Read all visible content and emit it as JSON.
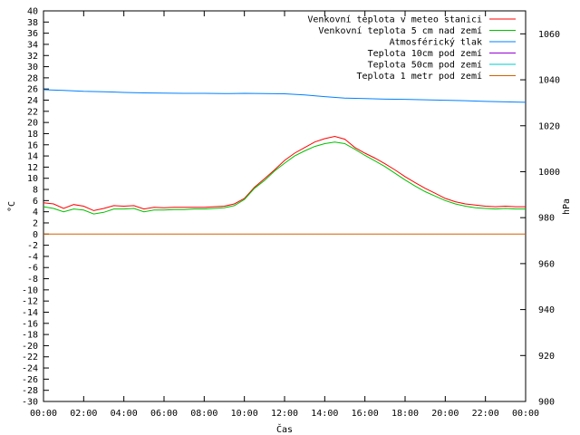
{
  "chart_data": {
    "type": "line",
    "xlabel": "Čas",
    "ylabel": "°C",
    "y2label": "hPa",
    "xlim": [
      0,
      24
    ],
    "ylim": [
      -30,
      40
    ],
    "y2lim": [
      900,
      1070
    ],
    "x_ticks": [
      "00:00",
      "02:00",
      "04:00",
      "06:00",
      "08:00",
      "10:00",
      "12:00",
      "14:00",
      "16:00",
      "18:00",
      "20:00",
      "22:00",
      "00:00"
    ],
    "y_ticks": [
      -30,
      -28,
      -26,
      -24,
      -22,
      -20,
      -18,
      -16,
      -14,
      -12,
      -10,
      -8,
      -6,
      -4,
      -2,
      0,
      2,
      4,
      6,
      8,
      10,
      12,
      14,
      16,
      18,
      20,
      22,
      24,
      26,
      28,
      30,
      32,
      34,
      36,
      38,
      40
    ],
    "y2_ticks": [
      900,
      920,
      940,
      960,
      980,
      1000,
      1020,
      1040,
      1060
    ],
    "legend_position": "top-right",
    "series": [
      {
        "name": "Venkovní teplota v meteo stanici",
        "color": "#ff0000",
        "axis": "y",
        "x": [
          0,
          0.5,
          1,
          1.5,
          2,
          2.5,
          3,
          3.5,
          4,
          4.5,
          5,
          5.5,
          6,
          6.5,
          7,
          7.5,
          8,
          8.5,
          9,
          9.5,
          10,
          10.5,
          11,
          11.5,
          12,
          12.5,
          13,
          13.5,
          14,
          14.5,
          15,
          15.5,
          16,
          16.5,
          17,
          17.5,
          18,
          18.5,
          19,
          19.5,
          20,
          20.5,
          21,
          21.5,
          22,
          22.5,
          23,
          23.5,
          24
        ],
        "values": [
          5.6,
          5.4,
          4.6,
          5.3,
          5.0,
          4.2,
          4.6,
          5.1,
          5.0,
          5.1,
          4.5,
          4.8,
          4.7,
          4.8,
          4.8,
          4.8,
          4.8,
          4.9,
          5.0,
          5.4,
          6.4,
          8.4,
          9.9,
          11.5,
          13.2,
          14.5,
          15.5,
          16.5,
          17.1,
          17.5,
          17.0,
          15.5,
          14.5,
          13.6,
          12.6,
          11.5,
          10.3,
          9.2,
          8.2,
          7.3,
          6.4,
          5.8,
          5.4,
          5.2,
          5.0,
          4.9,
          5.0,
          4.9,
          4.9
        ]
      },
      {
        "name": "Venkovní teplota 5 cm nad zemí",
        "color": "#00c000",
        "axis": "y",
        "x": [
          0,
          0.5,
          1,
          1.5,
          2,
          2.5,
          3,
          3.5,
          4,
          4.5,
          5,
          5.5,
          6,
          6.5,
          7,
          7.5,
          8,
          8.5,
          9,
          9.5,
          10,
          10.5,
          11,
          11.5,
          12,
          12.5,
          13,
          13.5,
          14,
          14.5,
          15,
          15.5,
          16,
          16.5,
          17,
          17.5,
          18,
          18.5,
          19,
          19.5,
          20,
          20.5,
          21,
          21.5,
          22,
          22.5,
          23,
          23.5,
          24
        ],
        "values": [
          4.9,
          4.6,
          4.0,
          4.5,
          4.3,
          3.6,
          3.9,
          4.5,
          4.5,
          4.6,
          4.0,
          4.3,
          4.3,
          4.4,
          4.4,
          4.5,
          4.5,
          4.6,
          4.7,
          5.1,
          6.2,
          8.2,
          9.6,
          11.3,
          12.7,
          14.0,
          14.9,
          15.7,
          16.2,
          16.5,
          16.2,
          15.2,
          14.1,
          13.1,
          12.1,
          10.9,
          9.7,
          8.6,
          7.6,
          6.8,
          6.0,
          5.4,
          5.0,
          4.7,
          4.6,
          4.5,
          4.6,
          4.5,
          4.5
        ]
      },
      {
        "name": "Atmosférický tlak",
        "color": "#0080ff",
        "axis": "y2",
        "x": [
          0,
          1,
          2,
          3,
          4,
          5,
          6,
          7,
          8,
          9,
          10,
          11,
          12,
          13,
          14,
          15,
          16,
          17,
          18,
          19,
          20,
          21,
          22,
          23,
          24
        ],
        "values": [
          1035.7,
          1035.4,
          1035.0,
          1034.8,
          1034.5,
          1034.3,
          1034.2,
          1034.1,
          1034.1,
          1034.0,
          1034.1,
          1034.0,
          1033.9,
          1033.4,
          1032.7,
          1032.0,
          1031.8,
          1031.6,
          1031.5,
          1031.3,
          1031.1,
          1030.9,
          1030.6,
          1030.4,
          1030.2
        ]
      },
      {
        "name": "Teplota 10cm pod zemí",
        "color": "#9400d3",
        "axis": "y",
        "x": [],
        "values": []
      },
      {
        "name": "Teplota 50cm pod zemí",
        "color": "#00c8c8",
        "axis": "y",
        "x": [],
        "values": []
      },
      {
        "name": "Teplota 1 metr pod zemí",
        "color": "#d06000",
        "axis": "y",
        "x": [
          0,
          24
        ],
        "values": [
          0,
          0
        ]
      }
    ]
  }
}
